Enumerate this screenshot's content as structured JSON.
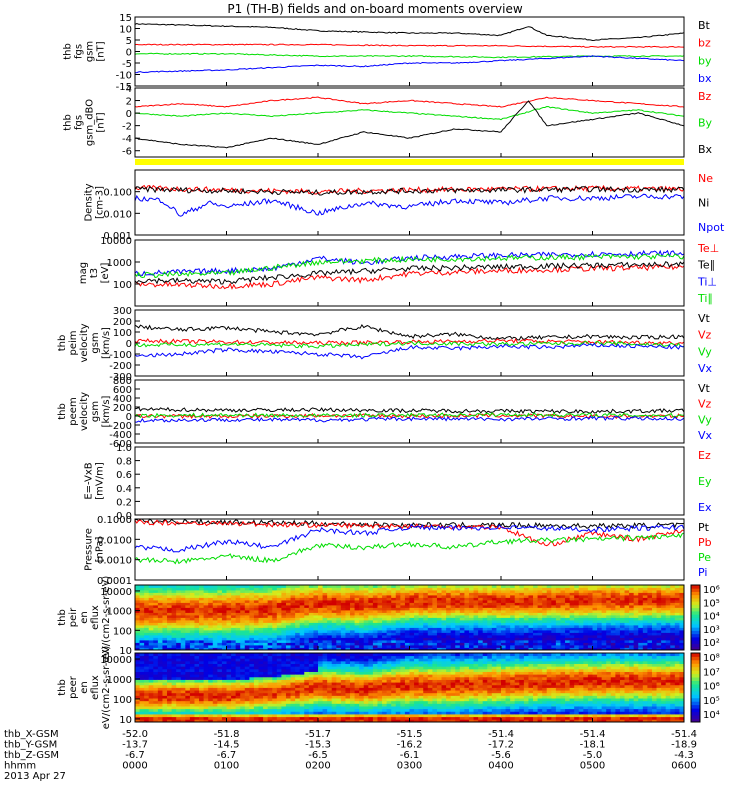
{
  "title": "P1 (TH-B) fields and on-board moments overview",
  "colors": {
    "black": "#000000",
    "red": "#ff0000",
    "green": "#00dd00",
    "blue": "#0000ff",
    "yellow": "#ffff00"
  },
  "footer": {
    "rows": [
      {
        "label": "thb_X-GSM",
        "values": [
          "-52.0",
          "-51.8",
          "-51.7",
          "-51.5",
          "-51.4",
          "-51.4",
          "-51.4"
        ]
      },
      {
        "label": "thb_Y-GSM",
        "values": [
          "-13.7",
          "-14.5",
          "-15.3",
          "-16.2",
          "-17.2",
          "-18.1",
          "-18.9"
        ]
      },
      {
        "label": "thb_Z-GSM",
        "values": [
          "-6.7",
          "-6.7",
          "-6.5",
          "-6.1",
          "-5.6",
          "-5.0",
          "-4.3"
        ]
      },
      {
        "label": "hhmm",
        "values": [
          "0000",
          "0100",
          "0200",
          "0300",
          "0400",
          "0500",
          "0600"
        ]
      }
    ],
    "date": "2013 Apr 27"
  },
  "chart_data": [
    {
      "type": "line",
      "title": "",
      "ylabel": "thb fgs gsm [nT]",
      "ylim": [
        -15,
        15
      ],
      "ticks": [
        "15",
        "10",
        "5",
        "0",
        "-5",
        "-10",
        "-15"
      ],
      "series": [
        {
          "name": "Bt",
          "color": "#000000",
          "x": [
            0,
            0.5,
            1,
            1.5,
            2,
            2.5,
            3,
            3.5,
            4,
            4.3,
            4.5,
            5,
            5.5,
            6
          ],
          "values": [
            12,
            11.5,
            11,
            10.5,
            9,
            8.5,
            8,
            8,
            7,
            11,
            7,
            5,
            6,
            8
          ]
        },
        {
          "name": "bz",
          "color": "#ff0000",
          "x": [
            0,
            1,
            2,
            3,
            4,
            5,
            6
          ],
          "values": [
            3,
            3,
            3,
            2.5,
            2.5,
            2,
            2
          ]
        },
        {
          "name": "by",
          "color": "#00dd00",
          "x": [
            0,
            1,
            2,
            3,
            4,
            5,
            6
          ],
          "values": [
            -1,
            -1,
            -2,
            -2,
            -2.5,
            -2,
            -2
          ]
        },
        {
          "name": "bx",
          "color": "#0000ff",
          "x": [
            0,
            0.5,
            1,
            1.5,
            2,
            2.5,
            3,
            3.5,
            4,
            4.5,
            5,
            5.5,
            6
          ],
          "values": [
            -9,
            -8.5,
            -8,
            -7,
            -6,
            -6.5,
            -5,
            -5,
            -4,
            -3,
            -2,
            -3,
            -4
          ]
        }
      ]
    },
    {
      "type": "line",
      "title": "",
      "ylabel": "thb fgs gsm_dBO [nT]",
      "ylim": [
        -7,
        4
      ],
      "ticks": [
        "4",
        "2",
        "0",
        "-2",
        "-4",
        "-6"
      ],
      "series": [
        {
          "name": "Bz",
          "color": "#ff0000",
          "x": [
            0,
            0.5,
            1,
            1.5,
            2,
            2.5,
            3,
            3.5,
            4,
            4.5,
            5,
            5.5,
            6
          ],
          "values": [
            1,
            1.5,
            1,
            2,
            2.5,
            1.5,
            2,
            1.5,
            1,
            2.5,
            2,
            1.5,
            1
          ]
        },
        {
          "name": "By",
          "color": "#00dd00",
          "x": [
            0,
            0.5,
            1,
            1.5,
            2,
            2.5,
            3,
            3.5,
            4,
            4.5,
            5,
            5.5,
            6
          ],
          "values": [
            0,
            -0.5,
            0,
            -0.5,
            0,
            0.5,
            0,
            -0.5,
            -1,
            1,
            0,
            0.5,
            -0.5
          ]
        },
        {
          "name": "Bx",
          "color": "#000000",
          "x": [
            0,
            0.5,
            1,
            1.5,
            2,
            2.5,
            3,
            3.5,
            4,
            4.3,
            4.5,
            5,
            5.5,
            6
          ],
          "values": [
            -4,
            -5,
            -5.5,
            -4,
            -5,
            -3,
            -4,
            -2.5,
            -3,
            2,
            -2,
            -1,
            0,
            -2
          ]
        }
      ]
    },
    {
      "type": "line",
      "title": "",
      "ylabel": "Density [cm-3]",
      "scale": "log",
      "ylim": [
        0.001,
        1
      ],
      "ticks": [
        "0.100",
        "0.010",
        "0.001"
      ],
      "series": [
        {
          "name": "Ne",
          "color": "#ff0000",
          "x": [
            0,
            1,
            2,
            3,
            4,
            5,
            6
          ],
          "values": [
            0.15,
            0.12,
            0.1,
            0.12,
            0.13,
            0.14,
            0.13
          ]
        },
        {
          "name": "Ni",
          "color": "#000000",
          "x": [
            0,
            1,
            2,
            3,
            4,
            5,
            6
          ],
          "values": [
            0.13,
            0.11,
            0.09,
            0.11,
            0.12,
            0.13,
            0.12
          ]
        },
        {
          "name": "Npot",
          "color": "#0000ff",
          "x": [
            0,
            0.3,
            0.5,
            0.8,
            1,
            1.5,
            2,
            2.5,
            3,
            3.5,
            4,
            4.5,
            5,
            5.5,
            6
          ],
          "values": [
            0.05,
            0.04,
            0.008,
            0.03,
            0.02,
            0.04,
            0.01,
            0.03,
            0.02,
            0.04,
            0.03,
            0.05,
            0.05,
            0.06,
            0.06
          ]
        }
      ]
    },
    {
      "type": "line",
      "title": "",
      "ylabel": "mag t3 [eV]",
      "scale": "log",
      "ylim": [
        10,
        10000
      ],
      "ticks": [
        "10000",
        "1000",
        "100"
      ],
      "series": [
        {
          "name": "Te⊥",
          "color": "#ff0000",
          "x": [
            0,
            0.5,
            1,
            1.5,
            2,
            2.5,
            3,
            3.5,
            4,
            4.5,
            5,
            5.5,
            6
          ],
          "values": [
            100,
            90,
            80,
            100,
            200,
            150,
            300,
            350,
            400,
            450,
            500,
            550,
            600
          ]
        },
        {
          "name": "Te∥",
          "color": "#000000",
          "x": [
            0,
            1,
            2,
            3,
            4,
            5,
            6
          ],
          "values": [
            150,
            130,
            300,
            500,
            600,
            700,
            800
          ]
        },
        {
          "name": "Ti⊥",
          "color": "#0000ff",
          "x": [
            0,
            0.5,
            1,
            1.5,
            2,
            2.5,
            3,
            3.5,
            4,
            4.5,
            5,
            5.5,
            6
          ],
          "values": [
            300,
            350,
            400,
            500,
            1500,
            900,
            1500,
            1800,
            2000,
            2100,
            2300,
            2400,
            2500
          ]
        },
        {
          "name": "Ti∥",
          "color": "#00dd00",
          "x": [
            0,
            1,
            2,
            3,
            4,
            5,
            6
          ],
          "values": [
            250,
            300,
            1000,
            1300,
            1500,
            1700,
            1800
          ]
        }
      ]
    },
    {
      "type": "line",
      "title": "",
      "ylabel": "thb peim velocity gsm [km/s]",
      "ylim": [
        -300,
        300
      ],
      "ticks": [
        "300",
        "200",
        "100",
        "0",
        "-100",
        "-200",
        "-300"
      ],
      "series": [
        {
          "name": "Vt",
          "color": "#000000",
          "x": [
            0,
            0.5,
            1,
            1.5,
            2,
            2.5,
            3,
            3.5,
            4,
            4.5,
            5,
            5.5,
            6
          ],
          "values": [
            150,
            120,
            140,
            100,
            80,
            150,
            60,
            80,
            40,
            50,
            60,
            50,
            60
          ]
        },
        {
          "name": "Vz",
          "color": "#ff0000",
          "x": [
            0,
            1,
            2,
            3,
            4,
            5,
            6
          ],
          "values": [
            20,
            10,
            0,
            10,
            20,
            10,
            0
          ]
        },
        {
          "name": "Vy",
          "color": "#00dd00",
          "x": [
            0,
            1,
            2,
            3,
            4,
            5,
            6
          ],
          "values": [
            -20,
            -10,
            -30,
            0,
            -10,
            0,
            -20
          ]
        },
        {
          "name": "Vx",
          "color": "#0000ff",
          "x": [
            0,
            0.5,
            1,
            1.5,
            2,
            2.5,
            3,
            3.5,
            4,
            4.5,
            5,
            5.5,
            6
          ],
          "values": [
            -120,
            -100,
            -60,
            -80,
            -100,
            -130,
            -40,
            -50,
            -30,
            -40,
            -20,
            -30,
            -40
          ]
        }
      ]
    },
    {
      "type": "line",
      "title": "",
      "ylabel": "thb peem velocity gsm [km/s]",
      "ylim": [
        -600,
        800
      ],
      "ticks": [
        "800",
        "600",
        "400",
        "200",
        "0",
        "-200",
        "-400",
        "-600"
      ],
      "series": [
        {
          "name": "Vt",
          "color": "#000000",
          "x": [
            0,
            1,
            2,
            3,
            4,
            5,
            6
          ],
          "values": [
            150,
            130,
            140,
            120,
            110,
            100,
            120
          ]
        },
        {
          "name": "Vz",
          "color": "#ff0000",
          "x": [
            0,
            1,
            2,
            3,
            4,
            5,
            6
          ],
          "values": [
            0,
            -10,
            10,
            0,
            10,
            -10,
            0
          ]
        },
        {
          "name": "Vy",
          "color": "#00dd00",
          "x": [
            0,
            1,
            2,
            3,
            4,
            5,
            6
          ],
          "values": [
            10,
            20,
            10,
            20,
            30,
            20,
            10
          ]
        },
        {
          "name": "Vx",
          "color": "#0000ff",
          "x": [
            0,
            1,
            2,
            3,
            4,
            5,
            6
          ],
          "values": [
            -100,
            -80,
            -90,
            -60,
            -70,
            -50,
            -60
          ]
        }
      ]
    },
    {
      "type": "line",
      "title": "",
      "ylabel": "E=-VxB [mV/m]",
      "ylim": [
        0,
        1
      ],
      "ticks": [
        "1.0",
        "0.8",
        "0.6",
        "0.4",
        "0.2",
        "0.0"
      ],
      "series": [
        {
          "name": "Ez",
          "color": "#ff0000",
          "x": [],
          "values": []
        },
        {
          "name": "Ey",
          "color": "#00dd00",
          "x": [],
          "values": []
        },
        {
          "name": "Ex",
          "color": "#0000ff",
          "x": [],
          "values": []
        }
      ]
    },
    {
      "type": "line",
      "title": "",
      "ylabel": "Pressure [nPa]",
      "scale": "log",
      "ylim": [
        0.0001,
        0.1
      ],
      "ticks": [
        "0.1000",
        "0.0100",
        "0.0010",
        "0.0001"
      ],
      "series": [
        {
          "name": "Pt",
          "color": "#000000",
          "x": [
            0,
            1,
            2,
            3,
            4,
            5,
            6
          ],
          "values": [
            0.08,
            0.07,
            0.06,
            0.05,
            0.05,
            0.045,
            0.05
          ]
        },
        {
          "name": "Pb",
          "color": "#ff0000",
          "x": [
            0,
            1,
            2,
            3,
            4,
            4.5,
            5,
            5.5,
            6
          ],
          "values": [
            0.07,
            0.06,
            0.05,
            0.045,
            0.04,
            0.005,
            0.02,
            0.01,
            0.03
          ]
        },
        {
          "name": "Pe",
          "color": "#00dd00",
          "x": [
            0,
            0.5,
            1,
            1.5,
            2,
            2.5,
            3,
            3.5,
            4,
            4.5,
            5,
            5.5,
            6
          ],
          "values": [
            0.001,
            0.0008,
            0.0015,
            0.0009,
            0.005,
            0.004,
            0.006,
            0.004,
            0.008,
            0.009,
            0.01,
            0.012,
            0.015
          ]
        },
        {
          "name": "Pi",
          "color": "#0000ff",
          "x": [
            0,
            0.5,
            1,
            1.5,
            2,
            2.5,
            3,
            3.5,
            4,
            4.5,
            5,
            5.5,
            6
          ],
          "values": [
            0.004,
            0.003,
            0.008,
            0.004,
            0.03,
            0.02,
            0.04,
            0.035,
            0.04,
            0.035,
            0.03,
            0.035,
            0.04
          ]
        }
      ]
    },
    {
      "type": "heatmap",
      "title": "",
      "ylabel": "thb peir en eflux eV/(cm2-s-sr-eV)",
      "scale": "log",
      "ylim": [
        10,
        20000
      ],
      "ticks": [
        "10000",
        "1000",
        "100",
        "10"
      ],
      "colorbar": {
        "labels": [
          "10⁶",
          "10⁵",
          "10⁴",
          "10³",
          "10²"
        ]
      },
      "x": [
        0,
        0.5,
        1,
        1.5,
        2,
        2.5,
        3,
        3.5,
        4,
        4.5,
        5,
        5.5,
        6
      ],
      "peak_energy": [
        1000,
        1000,
        1000,
        1200,
        2500,
        2000,
        3000,
        3000,
        3000,
        3200,
        3500,
        3500,
        3500
      ],
      "width": [
        1.4,
        1.4,
        1.4,
        1.4,
        1.3,
        1.3,
        1.2,
        1.2,
        1.2,
        1.2,
        1.2,
        1.2,
        1.2
      ]
    },
    {
      "type": "heatmap",
      "title": "",
      "ylabel": "thb peer en eflux eV/(cm2-s-sr-eV)",
      "scale": "log",
      "ylim": [
        7,
        20000
      ],
      "ticks": [
        "10000",
        "1000",
        "100",
        "10"
      ],
      "colorbar": {
        "labels": [
          "10⁸",
          "10⁷",
          "10⁶",
          "10⁵",
          "10⁴"
        ]
      },
      "x": [
        0,
        0.5,
        1,
        1.5,
        2,
        2.5,
        3,
        3.5,
        4,
        4.5,
        5,
        5.5,
        6
      ],
      "peak_energy": [
        150,
        150,
        150,
        200,
        400,
        300,
        500,
        500,
        600,
        700,
        800,
        800,
        800
      ],
      "width": [
        1,
        1,
        1,
        1,
        1.1,
        1.1,
        1.2,
        1.2,
        1.2,
        1.2,
        1.2,
        1.2,
        1.2
      ]
    }
  ]
}
